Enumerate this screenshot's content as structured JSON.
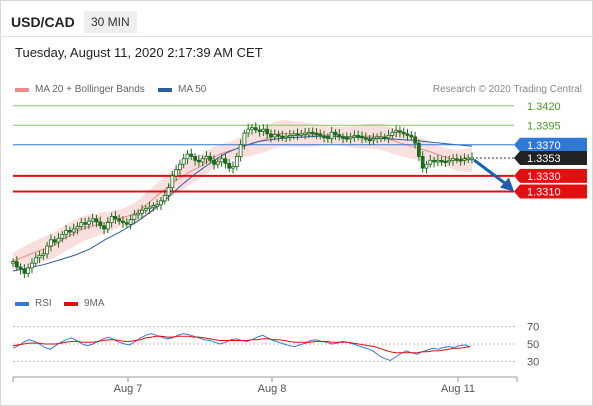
{
  "header": {
    "symbol": "USD/CAD",
    "timeframe": "30 MIN",
    "timestamp": "Tuesday, August 11, 2020 2:17:39 AM CET"
  },
  "legend": {
    "ma20_label": "MA 20 + Bollinger Bands",
    "ma50_label": "MA 50",
    "copyright": "Research © 2020 Trading Central"
  },
  "colors": {
    "ma20": "#f08a8a",
    "ma50": "#2e5d9e",
    "candle": "#1e6b1e",
    "resistance": "#8cc26b",
    "pivot_line": "#2f78d6",
    "support": "#e01010",
    "price_tag": "#222222",
    "rsi": "#3a78d8",
    "rsi_ma": "#e01010"
  },
  "chart_data": [
    {
      "type": "line",
      "title": "",
      "x_ticks": [
        "Aug 7",
        "Aug 8",
        "Aug 11"
      ],
      "ylim": [
        1.319,
        1.343
      ],
      "levels": [
        {
          "value": "1.3420",
          "kind": "resistance"
        },
        {
          "value": "1.3395",
          "kind": "resistance"
        },
        {
          "value": "1.3370",
          "kind": "pivot"
        },
        {
          "value": "1.3353",
          "kind": "last_price"
        },
        {
          "value": "1.3330",
          "kind": "support"
        },
        {
          "value": "1.3310",
          "kind": "support"
        }
      ],
      "series": [
        {
          "name": "price",
          "values": [
            1.322,
            1.3213,
            1.321,
            1.3205,
            1.3212,
            1.3218,
            1.3225,
            1.3228,
            1.323,
            1.324,
            1.3248,
            1.3245,
            1.325,
            1.3255,
            1.326,
            1.3258,
            1.3262,
            1.3265,
            1.327,
            1.3268,
            1.3272,
            1.3275,
            1.3271,
            1.3266,
            1.3262,
            1.327,
            1.3278,
            1.3275,
            1.3272,
            1.327,
            1.3268,
            1.3274,
            1.328,
            1.3282,
            1.3286,
            1.3288,
            1.329,
            1.3292,
            1.3293,
            1.3298,
            1.3305,
            1.3315,
            1.333,
            1.3338,
            1.3345,
            1.3352,
            1.3358,
            1.3355,
            1.335,
            1.3348,
            1.3352,
            1.3355,
            1.335,
            1.3345,
            1.3348,
            1.3352,
            1.3346,
            1.334,
            1.3342,
            1.3355,
            1.337,
            1.3385,
            1.339,
            1.3392,
            1.3389,
            1.3387,
            1.339,
            1.3384,
            1.338,
            1.3383,
            1.3381,
            1.338,
            1.3381,
            1.3382,
            1.3384,
            1.3383,
            1.3384,
            1.3385,
            1.3386,
            1.3385,
            1.3384,
            1.3381,
            1.338,
            1.3378,
            1.3386,
            1.3383,
            1.338,
            1.3379,
            1.3378,
            1.338,
            1.3382,
            1.3381,
            1.3379,
            1.3377,
            1.3376,
            1.3378,
            1.338,
            1.338,
            1.3379,
            1.3382,
            1.3386,
            1.3388,
            1.3386,
            1.3384,
            1.3382,
            1.338,
            1.3372,
            1.3355,
            1.334,
            1.3345,
            1.335,
            1.3348,
            1.335,
            1.3349,
            1.3348,
            1.335,
            1.3352,
            1.3351,
            1.335,
            1.3352,
            1.3353,
            1.3353
          ]
        },
        {
          "name": "MA 50",
          "values": [
            1.3208,
            1.3212,
            1.3216,
            1.3222,
            1.3228,
            1.3236,
            1.3248,
            1.3258,
            1.327,
            1.3284,
            1.33,
            1.3318,
            1.3334,
            1.3348,
            1.336,
            1.3368,
            1.3374,
            1.3377,
            1.3379,
            1.338,
            1.3381,
            1.3381,
            1.338,
            1.3379,
            1.3378,
            1.3377,
            1.3376,
            1.3374,
            1.3372,
            1.337,
            1.3368
          ]
        }
      ]
    },
    {
      "type": "line",
      "title": "",
      "ylim": [
        20,
        80
      ],
      "y_ticks": [
        "70",
        "50",
        "30"
      ],
      "series": [
        {
          "name": "RSI",
          "values": [
            45,
            48,
            52,
            55,
            53,
            50,
            46,
            44,
            48,
            52,
            55,
            57,
            54,
            50,
            48,
            50,
            53,
            56,
            58,
            55,
            52,
            50,
            49,
            53,
            57,
            60,
            62,
            60,
            58,
            56,
            57,
            60,
            62,
            61,
            59,
            57,
            55,
            54,
            52,
            50,
            52,
            55,
            56,
            54,
            53,
            55,
            58,
            60,
            57,
            54,
            52,
            50,
            48,
            47,
            49,
            51,
            54,
            55,
            53,
            52,
            50,
            51,
            53,
            52,
            50,
            48,
            46,
            44,
            41,
            36,
            33,
            31,
            35,
            39,
            42,
            40,
            38,
            41,
            43,
            45,
            44,
            46,
            47,
            46,
            48,
            49,
            47
          ]
        },
        {
          "name": "9MA",
          "values": [
            48,
            49,
            50,
            51,
            51,
            51,
            50,
            50,
            50,
            51,
            52,
            53,
            53,
            52,
            52,
            52,
            53,
            54,
            55,
            55,
            54,
            53,
            53,
            54,
            55,
            57,
            58,
            59,
            59,
            58,
            58,
            59,
            59,
            59,
            58,
            58,
            57,
            56,
            55,
            54,
            54,
            54,
            54,
            54,
            54,
            55,
            55,
            56,
            56,
            55,
            55,
            54,
            53,
            52,
            52,
            52,
            52,
            53,
            53,
            53,
            52,
            52,
            52,
            52,
            51,
            50,
            49,
            48,
            47,
            45,
            43,
            41,
            40,
            40,
            40,
            40,
            40,
            41,
            41,
            42,
            42,
            43,
            44,
            45,
            45,
            46,
            47
          ]
        }
      ]
    }
  ]
}
